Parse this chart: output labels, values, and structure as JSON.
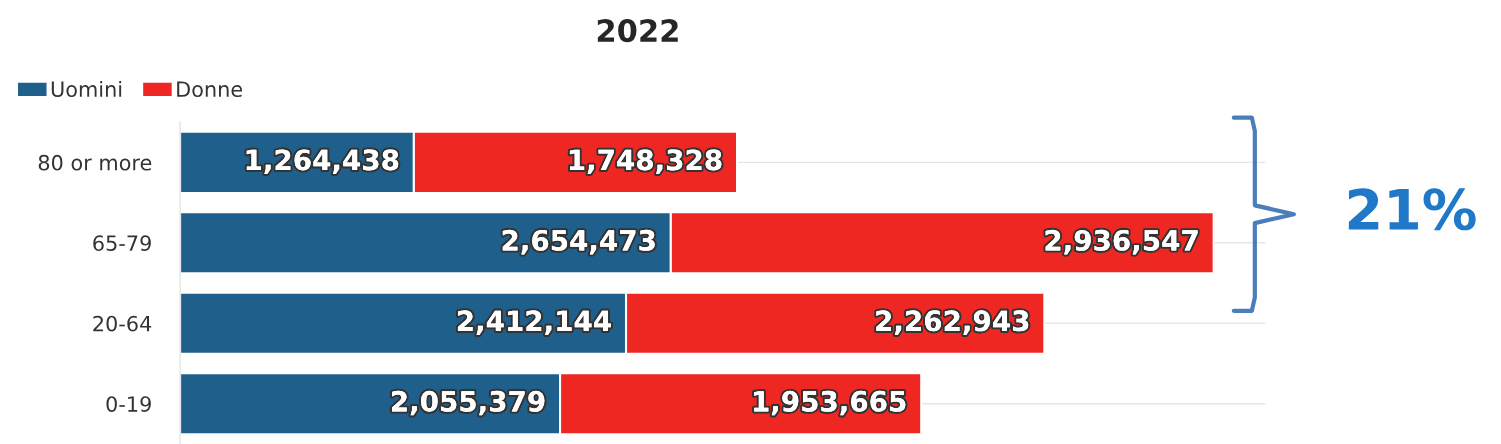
{
  "chart_data": {
    "type": "bar",
    "title": "2022",
    "orientation": "horizontal",
    "stacked": true,
    "categories": [
      "80 or more",
      "65-79",
      "20-64",
      "0-19"
    ],
    "series": [
      {
        "name": "Uomini",
        "color": "#1f5f8b",
        "values": [
          1264438,
          2654473,
          2412144,
          2055379
        ],
        "value_labels": [
          "1,264,438",
          "2,654,473",
          "2,412,144",
          "2,055,379"
        ]
      },
      {
        "name": "Donne",
        "color": "#ee2722",
        "values": [
          1748328,
          2936547,
          2262943,
          1953665
        ],
        "value_labels": [
          "1,748,328",
          "2,936,547",
          "2,262,943",
          "1,953,665"
        ]
      }
    ],
    "legend": "top left",
    "grid": "y",
    "annotations": [
      "21%"
    ]
  }
}
